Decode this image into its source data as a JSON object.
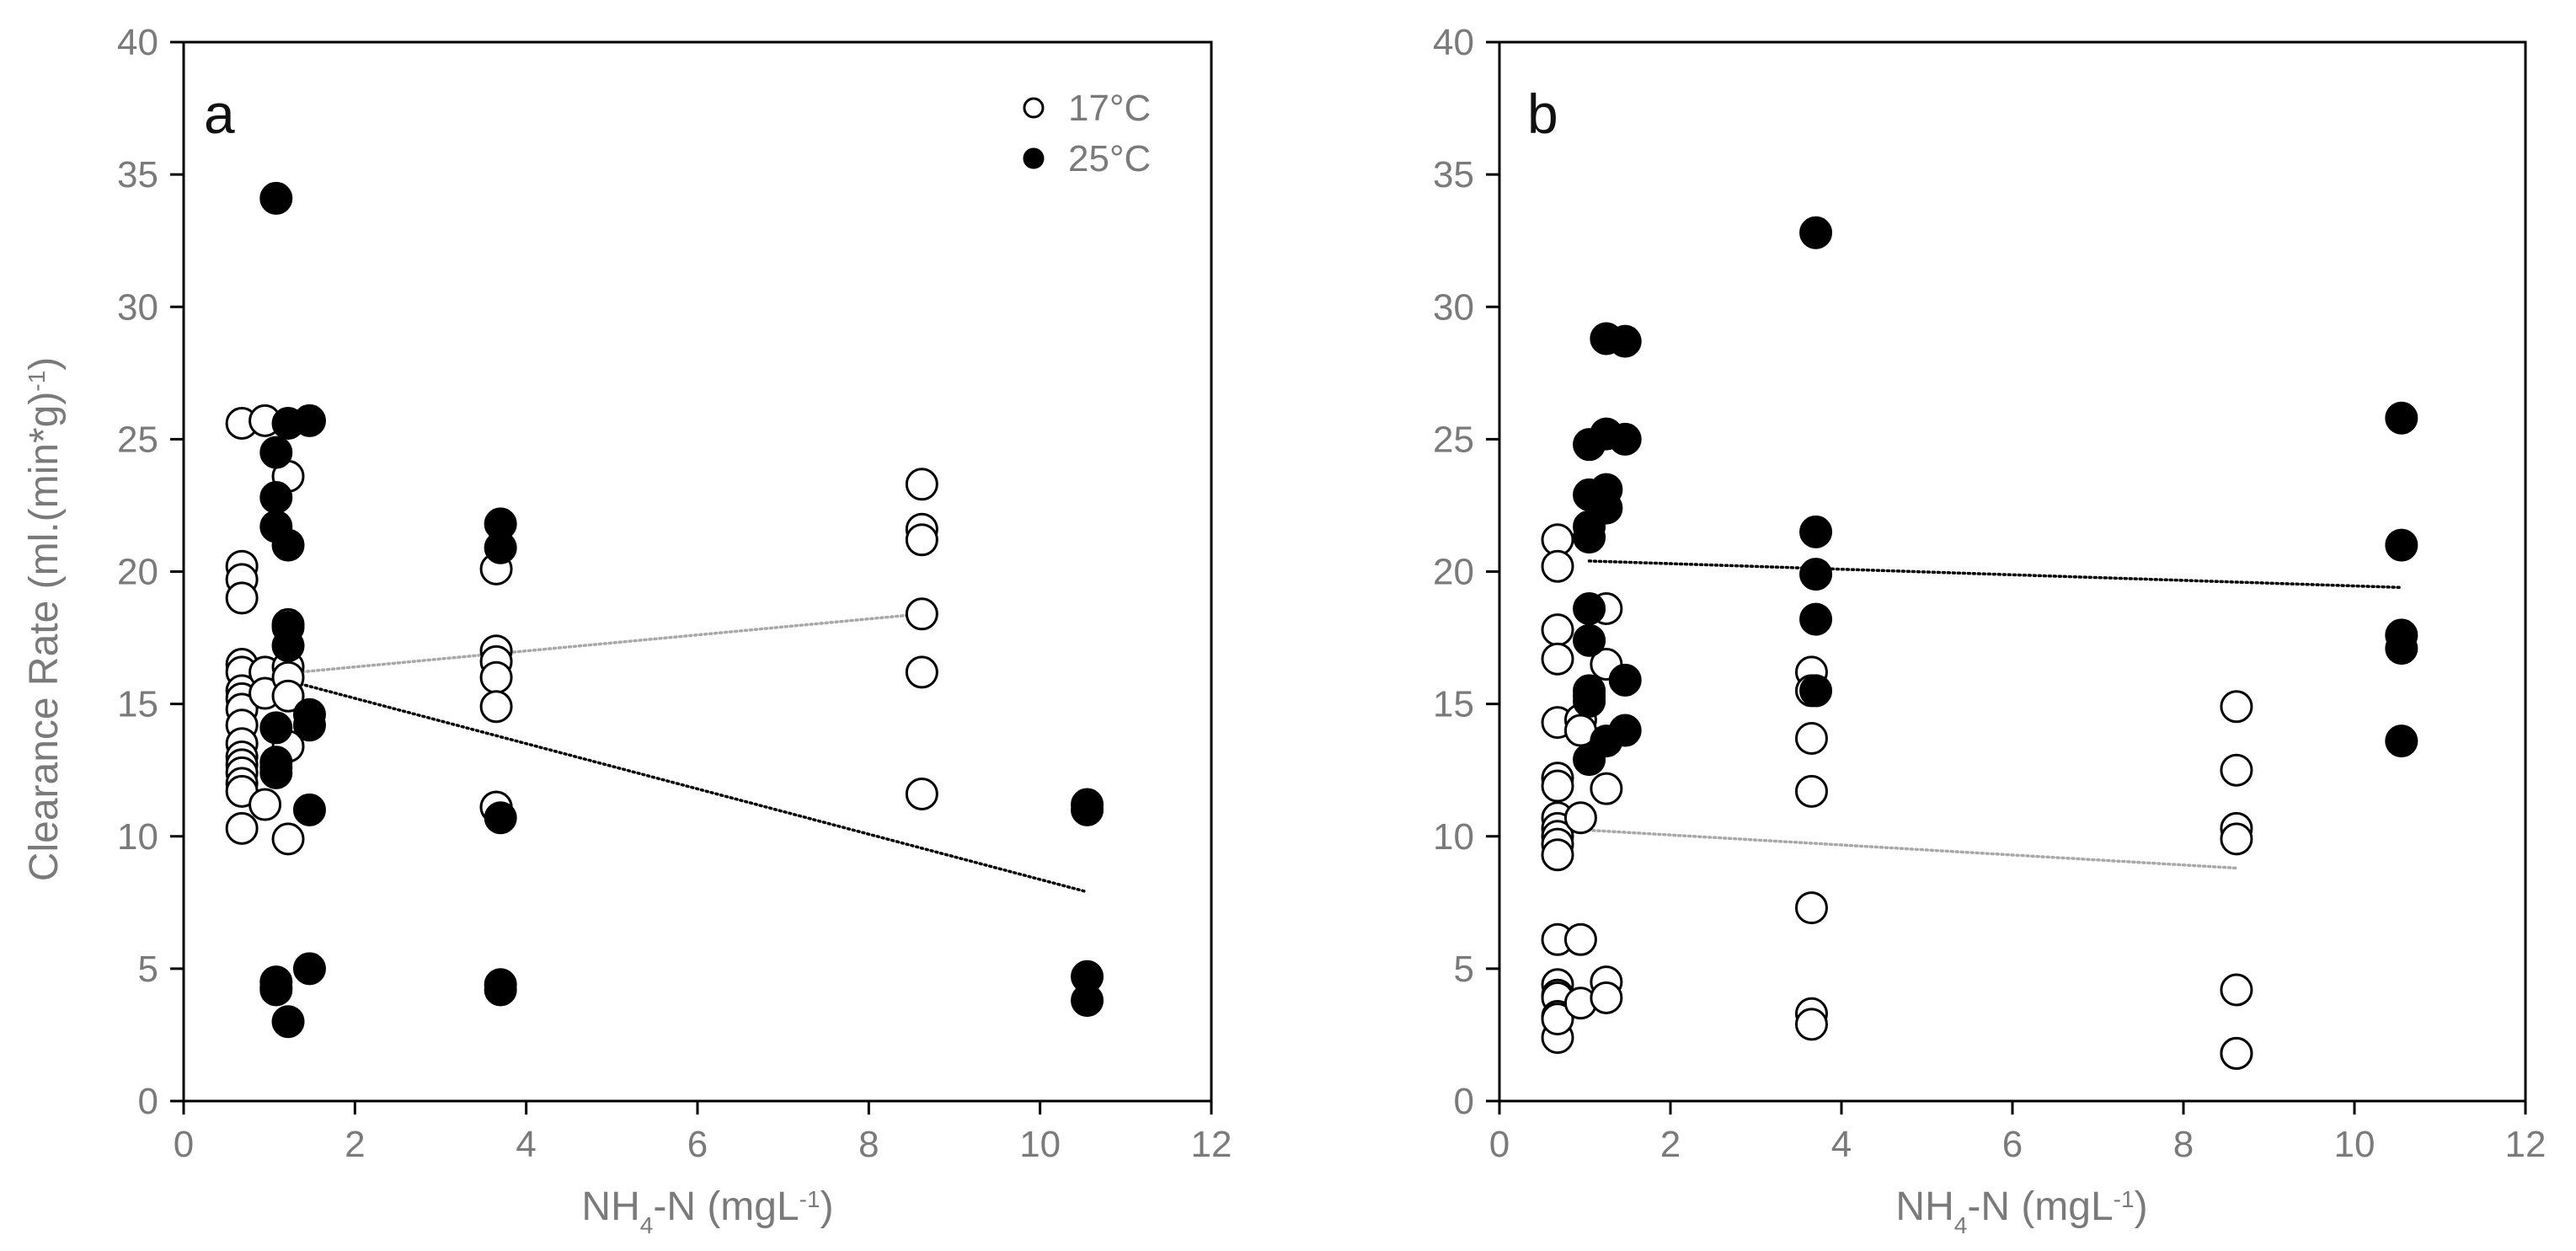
{
  "figure": {
    "ylabel": "Clearance Rate (ml.(min*g)",
    "ylabel_sup": "-1",
    "ylabel_tail": ")",
    "xlabel_prefix": "NH",
    "xlabel_sub": "4",
    "xlabel_mid": "-N (mgL",
    "xlabel_sup": "-1",
    "xlabel_tail": ")"
  },
  "legend": {
    "items": [
      {
        "label": "17°C",
        "fill": "#ffffff"
      },
      {
        "label": "25°C",
        "fill": "#000000"
      }
    ]
  },
  "colors": {
    "open_marker_fill": "#ffffff",
    "filled_marker": "#000000",
    "marker_stroke": "#000000",
    "trend_17": "#a8a8a8",
    "trend_25": "#000000",
    "axis_text": "#7a7a7a"
  },
  "chart_data": [
    {
      "type": "scatter",
      "panel": "a",
      "xlabel": "NH4-N (mgL-1)",
      "ylabel": "Clearance Rate (ml.(min*g)-1)",
      "xlim": [
        0,
        12
      ],
      "ylim": [
        0,
        40
      ],
      "xticks": [
        0,
        2,
        4,
        6,
        8,
        10,
        12
      ],
      "yticks": [
        0,
        5,
        10,
        15,
        20,
        25,
        30,
        35,
        40
      ],
      "legend_position": "top-right",
      "series": [
        {
          "name": "17°C",
          "marker": "open-circle",
          "x": [
            0.68,
            0.68,
            0.68,
            0.68,
            0.68,
            0.68,
            0.68,
            0.68,
            0.68,
            0.68,
            0.68,
            0.68,
            0.68,
            0.68,
            0.68,
            0.68,
            0.68,
            0.95,
            0.95,
            0.95,
            0.95,
            1.22,
            1.22,
            1.22,
            1.22,
            1.22,
            1.22,
            1.22,
            3.65,
            3.65,
            3.65,
            3.65,
            3.65,
            3.65,
            3.65,
            8.62,
            8.62,
            8.62,
            8.62,
            8.62,
            8.62
          ],
          "y": [
            25.6,
            20.2,
            19.7,
            19.0,
            16.5,
            16.2,
            15.5,
            15.2,
            14.8,
            14.2,
            13.5,
            13.0,
            12.7,
            12.4,
            12.0,
            11.7,
            10.3,
            25.7,
            16.2,
            15.4,
            11.2,
            23.6,
            18.0,
            16.4,
            16.0,
            15.3,
            13.4,
            9.9,
            20.1,
            17.0,
            16.6,
            16.0,
            14.9,
            11.1,
            11.1,
            23.3,
            21.6,
            21.2,
            18.4,
            16.2,
            11.6
          ]
        },
        {
          "name": "25°C",
          "marker": "filled-circle",
          "x": [
            1.08,
            1.08,
            1.08,
            1.08,
            1.08,
            1.08,
            1.08,
            1.08,
            1.08,
            1.08,
            1.08,
            1.22,
            1.22,
            1.22,
            1.22,
            1.22,
            1.47,
            1.47,
            1.47,
            1.47,
            1.47,
            3.7,
            3.7,
            3.7,
            3.7,
            3.7,
            10.55,
            10.55,
            10.55,
            10.55
          ],
          "y": [
            34.1,
            24.5,
            22.8,
            21.7,
            14.1,
            12.8,
            12.6,
            12.4,
            4.5,
            4.3,
            4.2,
            25.6,
            21.0,
            17.9,
            17.2,
            3.0,
            25.7,
            14.6,
            14.2,
            11.0,
            5.0,
            21.8,
            20.9,
            10.7,
            4.4,
            4.2,
            11.2,
            11.0,
            4.7,
            3.8
          ]
        }
      ],
      "trendlines": [
        {
          "name": "17°C fit",
          "x": [
            0.68,
            8.62
          ],
          "y": [
            16.0,
            18.4
          ]
        },
        {
          "name": "25°C fit",
          "x": [
            1.08,
            10.55
          ],
          "y": [
            16.0,
            7.9
          ]
        }
      ]
    },
    {
      "type": "scatter",
      "panel": "b",
      "xlabel": "NH4-N (mgL-1)",
      "ylabel": "",
      "xlim": [
        0,
        12
      ],
      "ylim": [
        0,
        40
      ],
      "xticks": [
        0,
        2,
        4,
        6,
        8,
        10,
        12
      ],
      "yticks": [
        0,
        5,
        10,
        15,
        20,
        25,
        30,
        35,
        40
      ],
      "series": [
        {
          "name": "17°C",
          "marker": "open-circle",
          "x": [
            0.68,
            0.68,
            0.68,
            0.68,
            0.68,
            0.68,
            0.68,
            0.68,
            0.68,
            0.68,
            0.68,
            0.68,
            0.68,
            0.68,
            0.68,
            0.68,
            0.68,
            0.68,
            0.68,
            0.95,
            0.95,
            0.95,
            0.95,
            0.95,
            1.25,
            1.25,
            1.25,
            1.25,
            1.25,
            3.65,
            3.65,
            3.65,
            3.65,
            3.65,
            3.65,
            3.65,
            8.62,
            8.62,
            8.62,
            8.62,
            8.62,
            8.62,
            8.62
          ],
          "y": [
            21.2,
            20.2,
            17.8,
            16.7,
            14.3,
            12.2,
            11.9,
            10.7,
            10.3,
            10.0,
            9.7,
            9.3,
            6.1,
            4.4,
            4.0,
            3.9,
            3.2,
            2.4,
            3.1,
            14.4,
            14.0,
            10.7,
            6.1,
            3.7,
            18.6,
            16.5,
            11.8,
            4.5,
            3.9,
            16.2,
            15.5,
            13.7,
            11.7,
            7.3,
            3.3,
            2.9,
            14.9,
            12.5,
            10.3,
            9.9,
            4.2,
            1.8,
            1.8
          ]
        },
        {
          "name": "25°C",
          "marker": "filled-circle",
          "x": [
            1.05,
            1.05,
            1.05,
            1.05,
            1.05,
            1.05,
            1.05,
            1.05,
            1.05,
            1.05,
            1.25,
            1.25,
            1.25,
            1.25,
            1.25,
            1.47,
            1.47,
            1.47,
            1.47,
            3.7,
            3.7,
            3.7,
            3.7,
            3.7,
            10.55,
            10.55,
            10.55,
            10.55,
            10.55
          ],
          "y": [
            24.8,
            22.9,
            21.7,
            21.3,
            18.6,
            17.4,
            15.5,
            15.3,
            15.1,
            12.9,
            28.8,
            25.2,
            23.1,
            22.4,
            13.6,
            28.7,
            25.0,
            15.9,
            14.0,
            32.8,
            21.5,
            19.9,
            18.2,
            15.5,
            25.8,
            21.0,
            17.6,
            17.1,
            13.6
          ]
        }
      ],
      "trendlines": [
        {
          "name": "17°C fit",
          "x": [
            0.68,
            8.62
          ],
          "y": [
            10.3,
            8.8
          ]
        },
        {
          "name": "25°C fit",
          "x": [
            1.05,
            10.55
          ],
          "y": [
            20.4,
            19.4
          ]
        }
      ]
    }
  ]
}
